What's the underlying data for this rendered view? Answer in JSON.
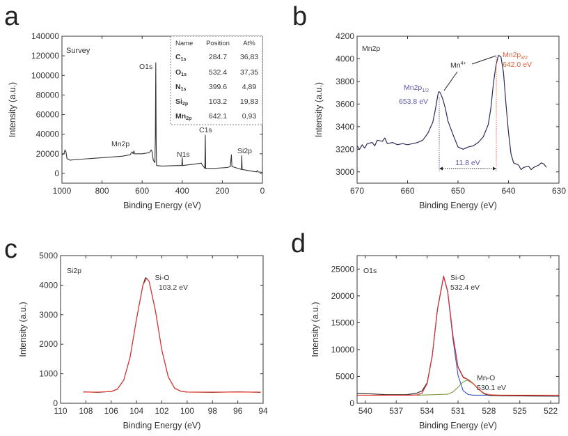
{
  "chart_data": [
    {
      "panel_label": "a",
      "type": "line",
      "title": "Survey",
      "xlabel": "Binding Energy (eV)",
      "ylabel": "Intensity (a.u.)",
      "xlim": [
        1000,
        0
      ],
      "ylim": [
        -10000,
        140000
      ],
      "xticks": [
        1000,
        800,
        600,
        400,
        200,
        0
      ],
      "yticks": [
        0,
        20000,
        40000,
        60000,
        80000,
        100000,
        120000,
        140000
      ],
      "grid": false,
      "series": [
        {
          "color": "#333333",
          "points": [
            [
              1000,
              19000
            ],
            [
              990,
              20000
            ],
            [
              985,
              24000
            ],
            [
              980,
              22000
            ],
            [
              975,
              15000
            ],
            [
              960,
              13500
            ],
            [
              900,
              14500
            ],
            [
              800,
              16000
            ],
            [
              700,
              17500
            ],
            [
              660,
              19000
            ],
            [
              650,
              22000
            ],
            [
              645,
              20000
            ],
            [
              641,
              23000
            ],
            [
              638,
              20000
            ],
            [
              600,
              20000
            ],
            [
              570,
              21000
            ],
            [
              560,
              22000
            ],
            [
              555,
              24000
            ],
            [
              550,
              22000
            ],
            [
              545,
              14000
            ],
            [
              540,
              12000
            ],
            [
              536,
              11000
            ],
            [
              534,
              40000
            ],
            [
              532,
              113000
            ],
            [
              530,
              30000
            ],
            [
              528,
              8000
            ],
            [
              500,
              7500
            ],
            [
              420,
              8000
            ],
            [
              402,
              8000
            ],
            [
              400,
              16000
            ],
            [
              398,
              8000
            ],
            [
              320,
              10000
            ],
            [
              305,
              10500
            ],
            [
              300,
              8500
            ],
            [
              290,
              6000
            ],
            [
              287,
              5000
            ],
            [
              285,
              39000
            ],
            [
              283,
              5000
            ],
            [
              250,
              5000
            ],
            [
              175,
              6000
            ],
            [
              160,
              7000
            ],
            [
              155,
              19000
            ],
            [
              152,
              7000
            ],
            [
              120,
              5000
            ],
            [
              105,
              4000
            ],
            [
              103,
              18000
            ],
            [
              101,
              4000
            ],
            [
              60,
              2500
            ],
            [
              30,
              1500
            ],
            [
              25,
              3000
            ],
            [
              22,
              1500
            ],
            [
              0,
              1000
            ]
          ]
        }
      ],
      "annotations": [
        "O1s",
        "Mn2p",
        "N1s",
        "C1s",
        "Si2p"
      ],
      "table": {
        "headers": [
          "Name",
          "Position",
          "At%"
        ],
        "rows": [
          {
            "name": "C",
            "sub": "1s",
            "position": "284.7",
            "at": "36,83"
          },
          {
            "name": "O",
            "sub": "1s",
            "position": "532.4",
            "at": "37,35"
          },
          {
            "name": "N",
            "sub": "1s",
            "position": "399.6",
            "at": "4,89"
          },
          {
            "name": "Si",
            "sub": "2p",
            "position": "103.2",
            "at": "19,83"
          },
          {
            "name": "Mn",
            "sub": "2p",
            "position": "642.1",
            "at": "0,93"
          }
        ]
      }
    },
    {
      "panel_label": "b",
      "type": "line",
      "title": "Mn2p",
      "xlabel": "Binding Energy (eV)",
      "ylabel": "Intensity (a.u.)",
      "xlim": [
        670,
        630
      ],
      "ylim": [
        2900,
        4200
      ],
      "xticks": [
        670,
        660,
        650,
        640,
        630
      ],
      "yticks": [
        3000,
        3200,
        3400,
        3600,
        3800,
        4000,
        4200
      ],
      "grid": false,
      "series": [
        {
          "color": "#2b2b55",
          "points": [
            [
              670,
              3230
            ],
            [
              669.5,
              3200
            ],
            [
              669,
              3240
            ],
            [
              668.5,
              3210
            ],
            [
              668,
              3250
            ],
            [
              667,
              3260
            ],
            [
              666.5,
              3230
            ],
            [
              666,
              3280
            ],
            [
              665,
              3270
            ],
            [
              664.5,
              3300
            ],
            [
              664,
              3250
            ],
            [
              663,
              3260
            ],
            [
              662,
              3240
            ],
            [
              661,
              3250
            ],
            [
              660,
              3240
            ],
            [
              659,
              3250
            ],
            [
              658,
              3260
            ],
            [
              657,
              3280
            ],
            [
              656,
              3340
            ],
            [
              655,
              3440
            ],
            [
              654.5,
              3550
            ],
            [
              654,
              3680
            ],
            [
              653.8,
              3710
            ],
            [
              653.5,
              3700
            ],
            [
              653,
              3640
            ],
            [
              652.5,
              3560
            ],
            [
              652,
              3450
            ],
            [
              651,
              3330
            ],
            [
              650,
              3220
            ],
            [
              649,
              3200
            ],
            [
              648,
              3220
            ],
            [
              647,
              3230
            ],
            [
              646,
              3260
            ],
            [
              645,
              3310
            ],
            [
              644,
              3420
            ],
            [
              643.5,
              3560
            ],
            [
              643,
              3780
            ],
            [
              642.5,
              3940
            ],
            [
              642,
              4030
            ],
            [
              641.5,
              4020
            ],
            [
              641,
              3880
            ],
            [
              640.5,
              3600
            ],
            [
              640,
              3350
            ],
            [
              639.5,
              3160
            ],
            [
              639,
              3080
            ],
            [
              638,
              3060
            ],
            [
              637.5,
              3020
            ],
            [
              637,
              3040
            ],
            [
              636,
              3050
            ],
            [
              635.5,
              3020
            ],
            [
              635,
              3040
            ],
            [
              634,
              3060
            ],
            [
              633.5,
              3080
            ],
            [
              633,
              3070
            ],
            [
              632.5,
              3040
            ]
          ]
        }
      ],
      "annotations": {
        "mn4": "Mn",
        "mn4_sup": "4+",
        "p32": "Mn2p",
        "p32_sub": "3/2",
        "p32_energy": "642.0 eV",
        "p12": "Mn2p",
        "p12_sub": "1/2",
        "p12_energy": "653.8 eV",
        "splitting": "11.8 eV"
      },
      "colors": {
        "p12": "#5a5aa8",
        "p32": "#e0603a"
      }
    },
    {
      "panel_label": "c",
      "type": "line",
      "title": "Si2p",
      "xlabel": "Binding Energy (eV)",
      "ylabel": "Intensity (a.u.)",
      "xlim": [
        110,
        94
      ],
      "ylim": [
        0,
        5000
      ],
      "xticks": [
        110,
        108,
        106,
        104,
        102,
        100,
        98,
        96,
        94
      ],
      "yticks": [
        0,
        1000,
        2000,
        3000,
        4000,
        5000
      ],
      "grid": false,
      "series": [
        {
          "color": "#222222",
          "points": [
            [
              108.2,
              385
            ],
            [
              107,
              370
            ],
            [
              106,
              400
            ],
            [
              105.5,
              480
            ],
            [
              105,
              790
            ],
            [
              104.5,
              1570
            ],
            [
              104,
              2850
            ],
            [
              103.5,
              3980
            ],
            [
              103.3,
              4250
            ],
            [
              103.2,
              4230
            ],
            [
              103,
              4120
            ],
            [
              102.5,
              3120
            ],
            [
              102,
              1800
            ],
            [
              101.5,
              900
            ],
            [
              101,
              515
            ],
            [
              100.5,
              405
            ],
            [
              100,
              380
            ],
            [
              98,
              370
            ],
            [
              96,
              385
            ],
            [
              94.2,
              370
            ]
          ]
        },
        {
          "color": "#e8302a",
          "points": [
            [
              108.2,
              380
            ],
            [
              107,
              380
            ],
            [
              106,
              397
            ],
            [
              105.5,
              479
            ],
            [
              105,
              789
            ],
            [
              104.5,
              1574
            ],
            [
              104,
              2852
            ],
            [
              103.5,
              4000
            ],
            [
              103.2,
              4230
            ],
            [
              103,
              4125
            ],
            [
              102.5,
              3122
            ],
            [
              102,
              1801
            ],
            [
              101.5,
              900
            ],
            [
              101,
              515
            ],
            [
              100.5,
              405
            ],
            [
              100,
              380
            ],
            [
              98,
              380
            ],
            [
              96,
              380
            ],
            [
              94.2,
              380
            ]
          ]
        }
      ],
      "annotations": {
        "peak": "Si-O",
        "peak_energy": "103.2 eV"
      }
    },
    {
      "panel_label": "d",
      "type": "line",
      "title": "O1s",
      "xlabel": "Binding Energy (eV)",
      "ylabel": "Intensity (a.u.)",
      "xlim": [
        540.8,
        521.2
      ],
      "ylim": [
        0,
        27500
      ],
      "xticks": [
        540,
        537,
        534,
        531,
        528,
        525,
        522
      ],
      "yticks": [
        0,
        5000,
        10000,
        15000,
        20000,
        25000
      ],
      "grid": false,
      "series": [
        {
          "color": "#222222",
          "points": [
            [
              540.8,
              1900
            ],
            [
              540,
              1800
            ],
            [
              538,
              1600
            ],
            [
              536,
              1600
            ],
            [
              535,
              1900
            ],
            [
              534.5,
              2300
            ],
            [
              534,
              3800
            ],
            [
              533.5,
              8900
            ],
            [
              533,
              17400
            ],
            [
              532.4,
              23600
            ],
            [
              532,
              20800
            ],
            [
              531.5,
              12700
            ],
            [
              531,
              6800
            ],
            [
              530.5,
              4900
            ],
            [
              530.1,
              4500
            ],
            [
              530,
              4400
            ],
            [
              529.5,
              3600
            ],
            [
              529,
              2600
            ],
            [
              528.5,
              1800
            ],
            [
              528,
              1450
            ],
            [
              527,
              1400
            ],
            [
              524,
              1350
            ],
            [
              521.2,
              1300
            ]
          ]
        },
        {
          "color": "#3a4fc0",
          "points": [
            [
              536,
              1500
            ],
            [
              535,
              1547
            ],
            [
              534.5,
              1895
            ],
            [
              534,
              3640
            ],
            [
              533.5,
              8850
            ],
            [
              533,
              17480
            ],
            [
              532.4,
              23700
            ],
            [
              532,
              20680
            ],
            [
              531.5,
              12090
            ],
            [
              531,
              5210
            ],
            [
              530.5,
              2320
            ],
            [
              530,
              1615
            ],
            [
              529.5,
              1500
            ],
            [
              528,
              1500
            ]
          ]
        },
        {
          "color": "#7a9a40",
          "points": [
            [
              535,
              1500
            ],
            [
              532,
              1668
            ],
            [
              531.5,
              2105
            ],
            [
              531,
              2987
            ],
            [
              530.5,
              3970
            ],
            [
              530.1,
              4300
            ],
            [
              529.5,
              3615
            ],
            [
              529,
              2589
            ],
            [
              528.5,
              1879
            ],
            [
              528,
              1589
            ],
            [
              527,
              1500
            ],
            [
              526,
              1500
            ]
          ]
        },
        {
          "color": "#e8302a",
          "points": [
            [
              540.8,
              1500
            ],
            [
              536,
              1500
            ],
            [
              535,
              1547
            ],
            [
              534.5,
              1895
            ],
            [
              534,
              3640
            ],
            [
              533.5,
              8850
            ],
            [
              533,
              17480
            ],
            [
              532.4,
              23710
            ],
            [
              532,
              20848
            ],
            [
              531.5,
              12695
            ],
            [
              531,
              6697
            ],
            [
              530.5,
              4790
            ],
            [
              530.1,
              4477
            ],
            [
              530,
              4387
            ],
            [
              529.5,
              3615
            ],
            [
              529,
              2589
            ],
            [
              528.5,
              1879
            ],
            [
              528,
              1589
            ],
            [
              527,
              1500
            ],
            [
              521.2,
              1500
            ]
          ]
        }
      ],
      "annotations": {
        "peak1": "Si-O",
        "peak1_energy": "532.4 eV",
        "peak2": "Mn-O",
        "peak2_energy": "530.1 eV"
      }
    }
  ]
}
